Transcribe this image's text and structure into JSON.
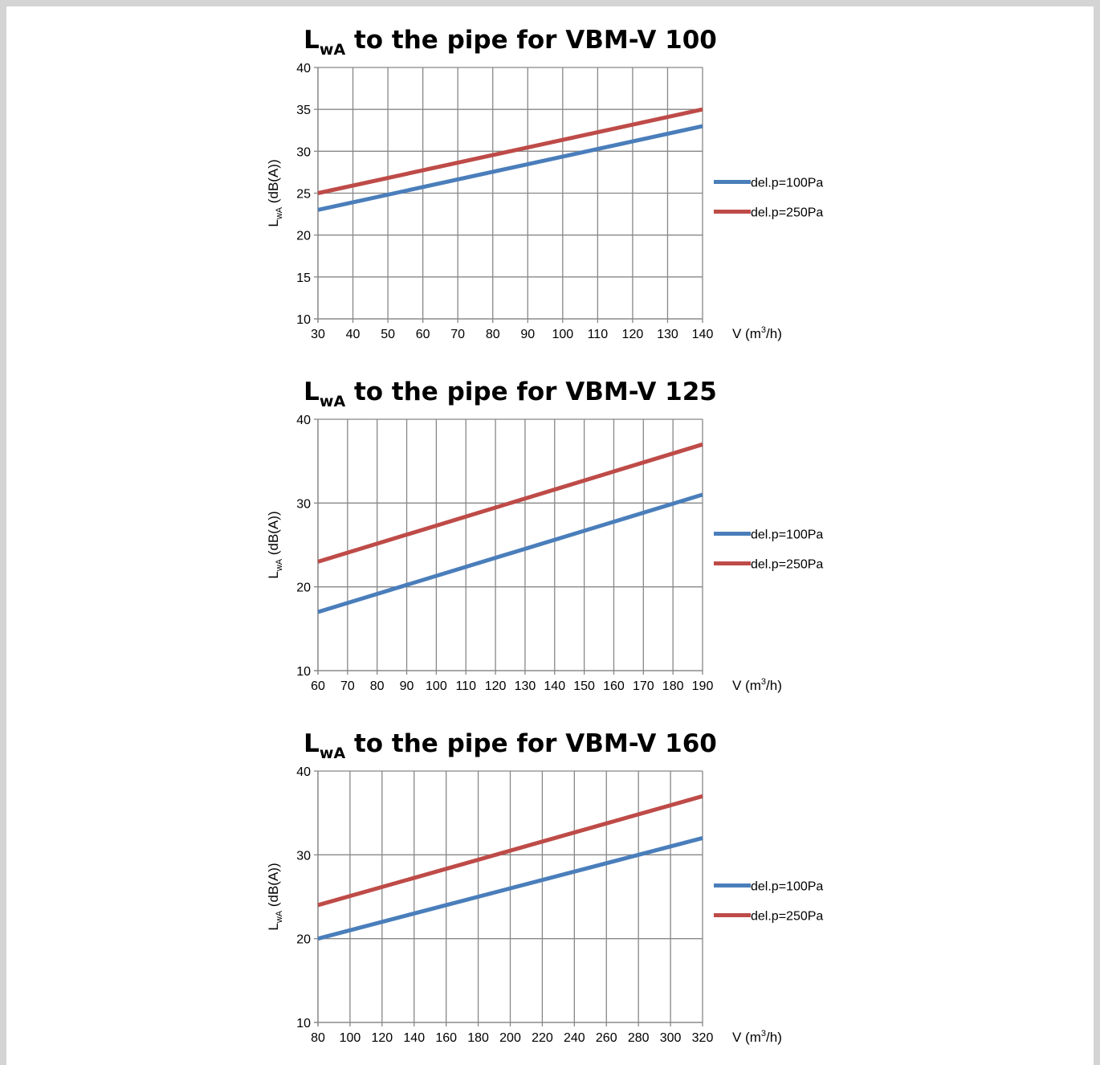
{
  "chart_data": [
    {
      "type": "line",
      "title_main": "L",
      "title_sub": "wA",
      "title_rest": " to the pipe for VBM-V 100",
      "ylabel_main": "L",
      "ylabel_sub": "wA",
      "ylabel_rest": " (dB(A))",
      "xlabel": "V (m",
      "xlabel_sup": "3",
      "xlabel_rest": "/h)",
      "xlim": [
        30,
        140
      ],
      "xticks": [
        30,
        40,
        50,
        60,
        70,
        80,
        90,
        100,
        110,
        120,
        130,
        140
      ],
      "ylim": [
        10,
        40
      ],
      "yticks": [
        10,
        15,
        20,
        25,
        30,
        35,
        40
      ],
      "grid": true,
      "legend_position": "right",
      "series": [
        {
          "name": "del.p=100Pa",
          "color": "#4a7ebb",
          "x": [
            30,
            140
          ],
          "y": [
            23,
            33
          ]
        },
        {
          "name": "del.p=250Pa",
          "color": "#be4b48",
          "x": [
            30,
            140
          ],
          "y": [
            25,
            35
          ]
        }
      ]
    },
    {
      "type": "line",
      "title_main": "L",
      "title_sub": "wA",
      "title_rest": " to the pipe for VBM-V 125",
      "ylabel_main": "L",
      "ylabel_sub": "wA",
      "ylabel_rest": " (dB(A))",
      "xlabel": "V (m",
      "xlabel_sup": "3",
      "xlabel_rest": "/h)",
      "xlim": [
        60,
        190
      ],
      "xticks": [
        60,
        70,
        80,
        90,
        100,
        110,
        120,
        130,
        140,
        150,
        160,
        170,
        180,
        190
      ],
      "ylim": [
        10,
        40
      ],
      "yticks": [
        10,
        20,
        30,
        40
      ],
      "grid": true,
      "legend_position": "right",
      "series": [
        {
          "name": "del.p=100Pa",
          "color": "#4a7ebb",
          "x": [
            60,
            190
          ],
          "y": [
            17,
            31
          ]
        },
        {
          "name": "del.p=250Pa",
          "color": "#be4b48",
          "x": [
            60,
            190
          ],
          "y": [
            23,
            37
          ]
        }
      ]
    },
    {
      "type": "line",
      "title_main": "L",
      "title_sub": "wA",
      "title_rest": " to the pipe for VBM-V 160",
      "ylabel_main": "L",
      "ylabel_sub": "wA",
      "ylabel_rest": " (dB(A))",
      "xlabel": "V (m",
      "xlabel_sup": "3",
      "xlabel_rest": "/h)",
      "xlim": [
        80,
        320
      ],
      "xticks": [
        80,
        100,
        120,
        140,
        160,
        180,
        200,
        220,
        240,
        260,
        280,
        300,
        320
      ],
      "ylim": [
        10,
        40
      ],
      "yticks": [
        10,
        20,
        30,
        40
      ],
      "grid": true,
      "legend_position": "right",
      "series": [
        {
          "name": "del.p=100Pa",
          "color": "#4a7ebb",
          "x": [
            80,
            320
          ],
          "y": [
            20,
            32
          ]
        },
        {
          "name": "del.p=250Pa",
          "color": "#be4b48",
          "x": [
            80,
            320
          ],
          "y": [
            24,
            37
          ]
        }
      ]
    }
  ]
}
